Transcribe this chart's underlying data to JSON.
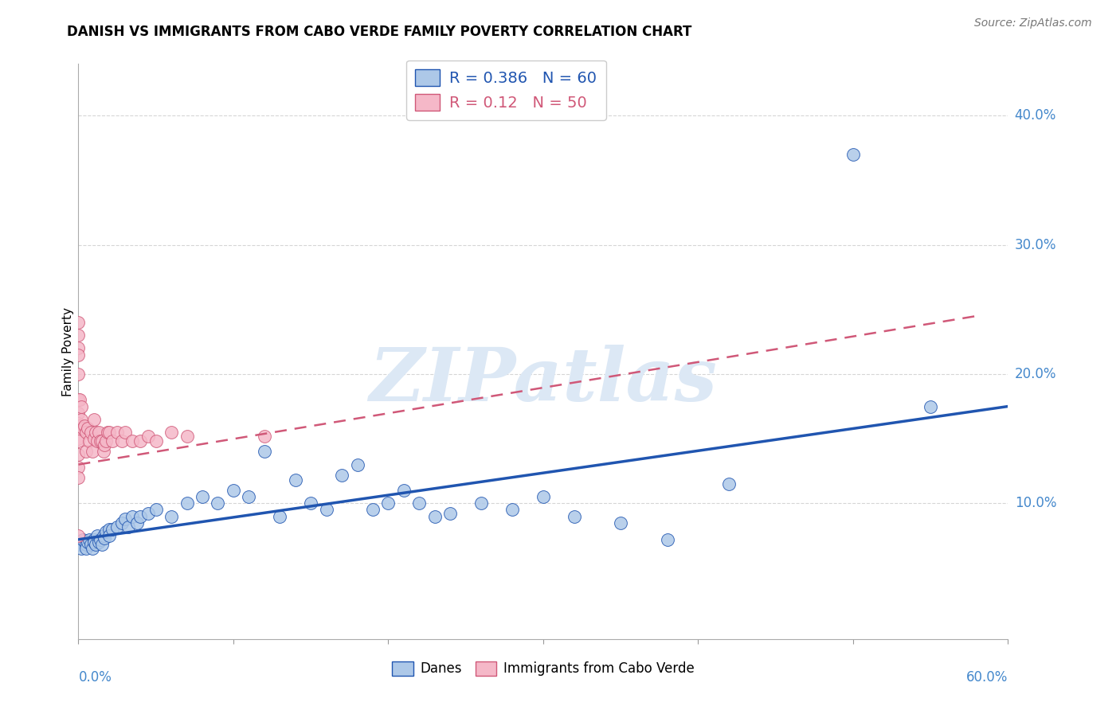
{
  "title": "DANISH VS IMMIGRANTS FROM CABO VERDE FAMILY POVERTY CORRELATION CHART",
  "source": "Source: ZipAtlas.com",
  "ylabel": "Family Poverty",
  "legend_label1": "Danes",
  "legend_label2": "Immigrants from Cabo Verde",
  "R1": 0.386,
  "N1": 60,
  "R2": 0.12,
  "N2": 50,
  "danes_color": "#adc8e8",
  "immigrants_color": "#f5b8c8",
  "danes_line_color": "#2055b0",
  "immigrants_line_color": "#d05878",
  "watermark_text": "ZIPatlas",
  "watermark_color": "#dce8f5",
  "ytick_labels": [
    "10.0%",
    "20.0%",
    "30.0%",
    "40.0%"
  ],
  "ytick_values": [
    0.1,
    0.2,
    0.3,
    0.4
  ],
  "xlim": [
    0.0,
    0.6
  ],
  "ylim": [
    -0.005,
    0.44
  ],
  "danes_x": [
    0.0,
    0.001,
    0.002,
    0.003,
    0.005,
    0.005,
    0.006,
    0.007,
    0.008,
    0.009,
    0.01,
    0.01,
    0.011,
    0.012,
    0.013,
    0.014,
    0.015,
    0.016,
    0.017,
    0.018,
    0.02,
    0.02,
    0.022,
    0.025,
    0.028,
    0.03,
    0.032,
    0.035,
    0.038,
    0.04,
    0.045,
    0.05,
    0.06,
    0.07,
    0.08,
    0.09,
    0.1,
    0.11,
    0.12,
    0.13,
    0.14,
    0.15,
    0.16,
    0.17,
    0.18,
    0.19,
    0.2,
    0.21,
    0.22,
    0.23,
    0.24,
    0.26,
    0.28,
    0.3,
    0.32,
    0.35,
    0.38,
    0.42,
    0.5,
    0.55
  ],
  "danes_y": [
    0.07,
    0.068,
    0.065,
    0.072,
    0.068,
    0.065,
    0.07,
    0.072,
    0.068,
    0.065,
    0.072,
    0.07,
    0.068,
    0.075,
    0.07,
    0.072,
    0.068,
    0.075,
    0.073,
    0.078,
    0.08,
    0.075,
    0.08,
    0.082,
    0.085,
    0.088,
    0.082,
    0.09,
    0.085,
    0.09,
    0.092,
    0.095,
    0.09,
    0.1,
    0.105,
    0.1,
    0.11,
    0.105,
    0.14,
    0.09,
    0.118,
    0.1,
    0.095,
    0.122,
    0.13,
    0.095,
    0.1,
    0.11,
    0.1,
    0.09,
    0.092,
    0.1,
    0.095,
    0.105,
    0.09,
    0.085,
    0.072,
    0.115,
    0.37,
    0.175
  ],
  "imm_x": [
    0.0,
    0.0,
    0.0,
    0.0,
    0.0,
    0.0,
    0.0,
    0.0,
    0.0,
    0.0,
    0.0,
    0.0,
    0.0,
    0.0,
    0.0,
    0.001,
    0.001,
    0.002,
    0.002,
    0.003,
    0.004,
    0.005,
    0.005,
    0.006,
    0.007,
    0.008,
    0.009,
    0.01,
    0.01,
    0.011,
    0.012,
    0.013,
    0.014,
    0.015,
    0.016,
    0.017,
    0.018,
    0.019,
    0.02,
    0.022,
    0.025,
    0.028,
    0.03,
    0.035,
    0.04,
    0.045,
    0.05,
    0.06,
    0.07,
    0.12
  ],
  "imm_y": [
    0.24,
    0.23,
    0.22,
    0.215,
    0.2,
    0.18,
    0.17,
    0.162,
    0.158,
    0.15,
    0.148,
    0.138,
    0.128,
    0.12,
    0.075,
    0.18,
    0.16,
    0.175,
    0.165,
    0.158,
    0.16,
    0.155,
    0.14,
    0.158,
    0.148,
    0.155,
    0.14,
    0.165,
    0.15,
    0.155,
    0.148,
    0.155,
    0.148,
    0.148,
    0.14,
    0.145,
    0.148,
    0.155,
    0.155,
    0.148,
    0.155,
    0.148,
    0.155,
    0.148,
    0.148,
    0.152,
    0.148,
    0.155,
    0.152,
    0.152
  ],
  "danes_trend": [
    0.0,
    0.6
  ],
  "danes_trend_y": [
    0.072,
    0.175
  ],
  "imm_trend": [
    0.0,
    0.58
  ],
  "imm_trend_y": [
    0.13,
    0.245
  ]
}
